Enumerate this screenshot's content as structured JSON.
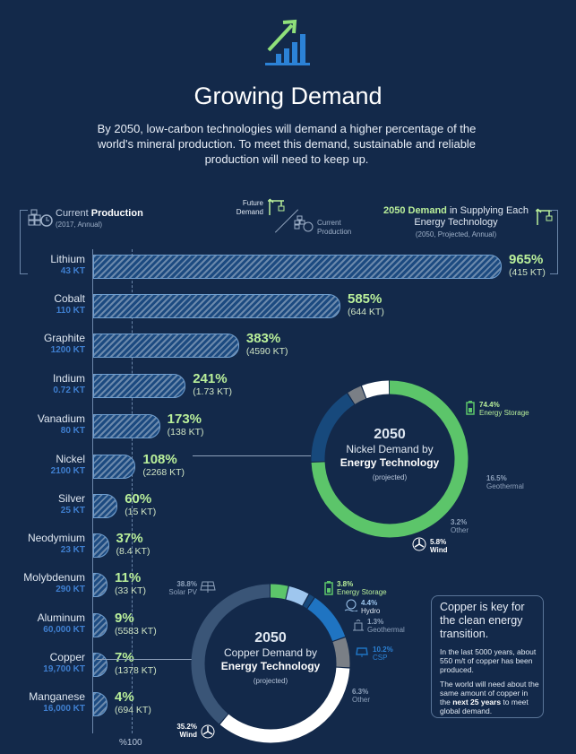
{
  "header": {
    "title": "Growing Demand",
    "intro": "By 2050, low-carbon technologies will demand a higher percentage of the world's mineral production. To meet this demand, sustainable and reliable production will need to keep up."
  },
  "legend": {
    "current_prefix": "Current ",
    "current_bold": "Production",
    "current_sub": "(2017, Annual)",
    "future_label": "Future Demand",
    "current_label": "Current Production",
    "demand_bold": "2050 Demand",
    "demand_rest": " in Supplying Each Energy Technology",
    "demand_sub": "(2050, Projected, Annual)"
  },
  "axis_label": "%100",
  "minerals": [
    {
      "name": "Lithium",
      "production": "43 KT",
      "pct": "965%",
      "demand": "(415 KT)",
      "value": 965
    },
    {
      "name": "Cobalt",
      "production": "110 KT",
      "pct": "585%",
      "demand": "(644 KT)",
      "value": 585
    },
    {
      "name": "Graphite",
      "production": "1200 KT",
      "pct": "383%",
      "demand": "(4590 KT)",
      "value": 383
    },
    {
      "name": "Indium",
      "production": "0.72 KT",
      "pct": "241%",
      "demand": "(1.73 KT)",
      "value": 241
    },
    {
      "name": "Vanadium",
      "production": "80 KT",
      "pct": "173%",
      "demand": "(138 KT)",
      "value": 173
    },
    {
      "name": "Nickel",
      "production": "2100 KT",
      "pct": "108%",
      "demand": "(2268 KT)",
      "value": 108
    },
    {
      "name": "Silver",
      "production": "25 KT",
      "pct": "60%",
      "demand": "(15 KT)",
      "value": 60
    },
    {
      "name": "Neodymium",
      "production": "23 KT",
      "pct": "37%",
      "demand": "(8.4 KT)",
      "value": 37
    },
    {
      "name": "Molybdenum",
      "production": "290 KT",
      "pct": "11%",
      "demand": "(33 KT)",
      "value": 11
    },
    {
      "name": "Aluminum",
      "production": "60,000 KT",
      "pct": "9%",
      "demand": "(5583 KT)",
      "value": 9
    },
    {
      "name": "Copper",
      "production": "19,700 KT",
      "pct": "7%",
      "demand": "(1378 KT)",
      "value": 7
    },
    {
      "name": "Manganese",
      "production": "16,000 KT",
      "pct": "4%",
      "demand": "(694 KT)",
      "value": 4
    }
  ],
  "nickel_ring": {
    "year": "2050",
    "line1": "Nickel Demand by",
    "line2": "Energy Technology",
    "note": "(projected)",
    "segments": [
      {
        "pct": "74.4%",
        "label": "Energy Storage",
        "value": 74.4,
        "color": "#5cc56a"
      },
      {
        "pct": "16.5%",
        "label": "Geothermal",
        "value": 16.5,
        "color": "#17497c"
      },
      {
        "pct": "3.2%",
        "label": "Other",
        "value": 3.2,
        "color": "#7a7f86"
      },
      {
        "pct": "5.8%",
        "label": "Wind",
        "value": 5.8,
        "color": "#ffffff"
      }
    ]
  },
  "copper_ring": {
    "year": "2050",
    "line1": "Copper Demand by",
    "line2": "Energy Technology",
    "note": "(projected)",
    "segments": [
      {
        "pct": "3.8%",
        "label": "Energy Storage",
        "value": 3.8,
        "color": "#5cc56a"
      },
      {
        "pct": "4.4%",
        "label": "Hydro",
        "value": 4.4,
        "color": "#9ec6ee"
      },
      {
        "pct": "1.3%",
        "label": "Geothermal",
        "value": 1.3,
        "color": "#17497c"
      },
      {
        "pct": "10.2%",
        "label": "CSP",
        "value": 10.2,
        "color": "#1f74c2"
      },
      {
        "pct": "6.3%",
        "label": "Other",
        "value": 6.3,
        "color": "#7a7f86"
      },
      {
        "pct": "35.2%",
        "label": "Wind",
        "value": 35.2,
        "color": "#ffffff"
      },
      {
        "pct": "38.8%",
        "label": "Solar PV",
        "value": 38.8,
        "color": "#3a5577"
      }
    ]
  },
  "copper_box": {
    "heading": "Copper is key for the clean energy transition.",
    "p1": "In the last 5000 years, about 550 m/t of copper has been produced.",
    "p2_a": "The world will need about the same amount of copper in the ",
    "p2_bold": "next 25 years",
    "p2_b": " to meet global demand."
  },
  "colors": {
    "background": "#13294a",
    "accent_green": "#b9ef9a",
    "bar_blue": "#1c4a80",
    "kt_blue": "#3f7fd0"
  }
}
